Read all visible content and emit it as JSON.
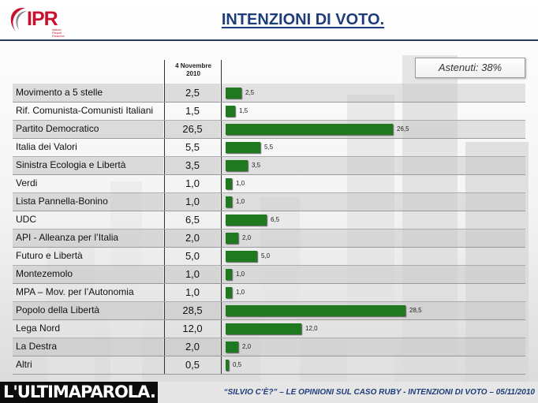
{
  "logo": {
    "text": "IPR",
    "subtitle": "Istituto Piepoli Ricerche"
  },
  "title": "INTENZIONI DI VOTO.",
  "astenuti": "Astenuti: 38%",
  "column_header": [
    "4 Novembre",
    "2010"
  ],
  "footer": {
    "brand": "L'ULTIMAPAROLA.",
    "caption": "“SILVIO C’È?” – LE OPINIONI SUL CASO RUBY - INTENZIONI DI VOTO – 05/11/2010"
  },
  "colors": {
    "bar": "#1f7a1f",
    "title": "#1f3d7a",
    "logo": "#c8102e"
  },
  "chart_data": {
    "type": "bar",
    "orientation": "horizontal",
    "title": "INTENZIONI DI VOTO.",
    "series": [
      {
        "name": "4 Novembre 2010",
        "values": [
          2.5,
          1.5,
          26.5,
          5.5,
          3.5,
          1.0,
          1.0,
          6.5,
          2.0,
          5.0,
          1.0,
          1.0,
          28.5,
          12.0,
          2.0,
          0.5
        ]
      }
    ],
    "categories": [
      "Movimento a 5 stelle",
      "Rif. Comunista-Comunisti Italiani",
      "Partito Democratico",
      "Italia dei Valori",
      "Sinistra Ecologia e Libertà",
      "Verdi",
      "Lista Pannella-Bonino",
      "UDC",
      "API - Alleanza per l’Italia",
      "Futuro e Libertà",
      "Montezemolo",
      "MPA – Mov. per l’Autonomia",
      "Popolo della Libertà",
      "Lega Nord",
      "La Destra",
      "Altri"
    ],
    "value_labels": [
      "2,5",
      "1,5",
      "26,5",
      "5,5",
      "3,5",
      "1,0",
      "1,0",
      "6,5",
      "2,0",
      "5,0",
      "1,0",
      "1,0",
      "28,5",
      "12,0",
      "2,0",
      "0,5"
    ],
    "bar_labels": [
      "2,5",
      "1,5",
      "26,5",
      "5,5",
      "3,5",
      "1,0",
      "1,0",
      "6,5",
      "2,0",
      "5,0",
      "1,0",
      "1,0",
      "28,5",
      "12,0",
      "2,0",
      "0,5"
    ],
    "xlim": [
      0,
      30
    ]
  }
}
